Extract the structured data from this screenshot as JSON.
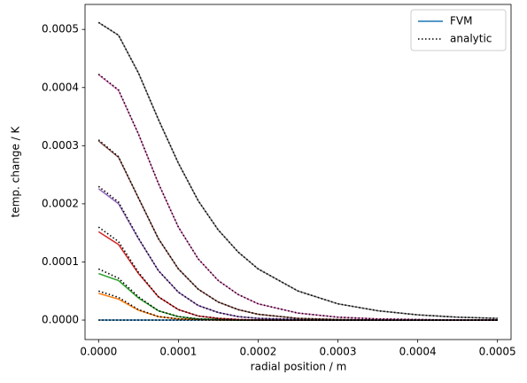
{
  "chart_data": {
    "type": "line",
    "xlabel": "radial position / m",
    "ylabel": "temp. change / K",
    "x": [
      0,
      2.5e-05,
      5e-05,
      7.5e-05,
      0.0001,
      0.000125,
      0.00015,
      0.000175,
      0.0002,
      0.00025,
      0.0003,
      0.00035,
      0.0004,
      0.00045,
      0.0005
    ],
    "xlim": [
      -1.7e-05,
      0.000517
    ],
    "ylim": [
      -3.35e-05,
      0.000543
    ],
    "xticks": [
      {
        "value": 0,
        "label": "0.0000"
      },
      {
        "value": 0.0001,
        "label": "0.0001"
      },
      {
        "value": 0.0002,
        "label": "0.0002"
      },
      {
        "value": 0.0003,
        "label": "0.0003"
      },
      {
        "value": 0.0004,
        "label": "0.0004"
      },
      {
        "value": 0.0005,
        "label": "0.0005"
      }
    ],
    "yticks": [
      {
        "value": 0,
        "label": "0.0000"
      },
      {
        "value": 0.0001,
        "label": "0.0001"
      },
      {
        "value": 0.0002,
        "label": "0.0002"
      },
      {
        "value": 0.0003,
        "label": "0.0003"
      },
      {
        "value": 0.0004,
        "label": "0.0004"
      },
      {
        "value": 0.0005,
        "label": "0.0005"
      }
    ],
    "legend_position": "upper right",
    "legend": [
      {
        "label": "FVM",
        "color": "#1f77b4",
        "style": "solid"
      },
      {
        "label": "analytic",
        "color": "#000000",
        "style": "dotted"
      }
    ],
    "series": [
      {
        "color": "#1f77b4",
        "style": "solid",
        "values": [
          0,
          0,
          0,
          0,
          0,
          0,
          0,
          0,
          0,
          0,
          0,
          0,
          0,
          0,
          0
        ]
      },
      {
        "color": "#ff7f0e",
        "style": "solid",
        "values": [
          4.6e-05,
          3.6e-05,
          1.7e-05,
          6e-06,
          2e-06,
          1e-06,
          0,
          0,
          0,
          0,
          0,
          0,
          0,
          0,
          0
        ]
      },
      {
        "color": "#2ca02c",
        "style": "solid",
        "values": [
          8e-05,
          6.8e-05,
          3.8e-05,
          1.6e-05,
          6e-06,
          2e-06,
          1e-06,
          0,
          0,
          0,
          0,
          0,
          0,
          0,
          0
        ]
      },
      {
        "color": "#d62728",
        "style": "solid",
        "values": [
          0.000152,
          0.00013,
          8e-05,
          4e-05,
          1.8e-05,
          7e-06,
          3e-06,
          1e-06,
          0,
          0,
          0,
          0,
          0,
          0,
          0
        ]
      },
      {
        "color": "#9467bd",
        "style": "solid",
        "values": [
          0.000226,
          0.0002,
          0.00014,
          8.5e-05,
          4.8e-05,
          2.5e-05,
          1.3e-05,
          6e-06,
          3e-06,
          1e-06,
          0,
          0,
          0,
          0,
          0
        ]
      },
      {
        "color": "#8c564b",
        "style": "solid",
        "values": [
          0.000308,
          0.00028,
          0.00021,
          0.00014,
          8.8e-05,
          5.3e-05,
          3.1e-05,
          1.8e-05,
          1e-05,
          3e-06,
          1e-06,
          0,
          0,
          0,
          0
        ]
      },
      {
        "color": "#e377c2",
        "style": "solid",
        "values": [
          0.000422,
          0.000395,
          0.00032,
          0.000235,
          0.00016,
          0.000105,
          6.8e-05,
          4.4e-05,
          2.8e-05,
          1.2e-05,
          5e-06,
          2e-06,
          1e-06,
          0,
          0
        ]
      },
      {
        "color": "#7f7f7f",
        "style": "solid",
        "values": [
          0.000512,
          0.00049,
          0.000425,
          0.000345,
          0.00027,
          0.000205,
          0.000155,
          0.000117,
          8.8e-05,
          5e-05,
          2.8e-05,
          1.6e-05,
          9e-06,
          5e-06,
          3e-06
        ]
      },
      {
        "color": "#000000",
        "style": "dotted",
        "values": [
          0,
          0,
          0,
          0,
          0,
          0,
          0,
          0,
          0,
          0,
          0,
          0,
          0,
          0,
          0
        ]
      },
      {
        "color": "#000000",
        "style": "dotted",
        "values": [
          5e-05,
          3.9e-05,
          1.8e-05,
          6e-06,
          2e-06,
          1e-06,
          0,
          0,
          0,
          0,
          0,
          0,
          0,
          0,
          0
        ]
      },
      {
        "color": "#000000",
        "style": "dotted",
        "values": [
          8.8e-05,
          7.2e-05,
          4e-05,
          1.6e-05,
          6e-06,
          2e-06,
          1e-06,
          0,
          0,
          0,
          0,
          0,
          0,
          0,
          0
        ]
      },
      {
        "color": "#000000",
        "style": "dotted",
        "values": [
          0.00016,
          0.000135,
          8.2e-05,
          4e-05,
          1.8e-05,
          7e-06,
          3e-06,
          1e-06,
          0,
          0,
          0,
          0,
          0,
          0,
          0
        ]
      },
      {
        "color": "#000000",
        "style": "dotted",
        "values": [
          0.00023,
          0.000203,
          0.000141,
          8.5e-05,
          4.8e-05,
          2.5e-05,
          1.3e-05,
          6e-06,
          3e-06,
          1e-06,
          0,
          0,
          0,
          0,
          0
        ]
      },
      {
        "color": "#000000",
        "style": "dotted",
        "values": [
          0.00031,
          0.000281,
          0.00021,
          0.00014,
          8.8e-05,
          5.3e-05,
          3.1e-05,
          1.8e-05,
          1e-05,
          3e-06,
          1e-06,
          0,
          0,
          0,
          0
        ]
      },
      {
        "color": "#000000",
        "style": "dotted",
        "values": [
          0.000423,
          0.000396,
          0.00032,
          0.000235,
          0.00016,
          0.000105,
          6.8e-05,
          4.4e-05,
          2.8e-05,
          1.2e-05,
          5e-06,
          2e-06,
          1e-06,
          0,
          0
        ]
      },
      {
        "color": "#000000",
        "style": "dotted",
        "values": [
          0.000512,
          0.00049,
          0.000425,
          0.000345,
          0.00027,
          0.000205,
          0.000155,
          0.000117,
          8.8e-05,
          5e-05,
          2.8e-05,
          1.6e-05,
          9e-06,
          5e-06,
          3e-06
        ]
      }
    ]
  }
}
